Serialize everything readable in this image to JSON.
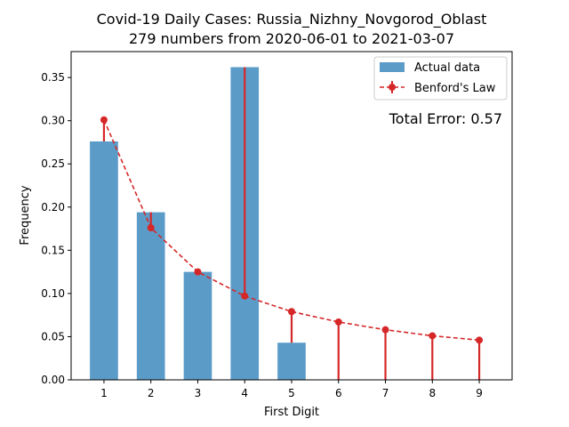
{
  "chart_data": {
    "type": "bar",
    "title": "Covid-19 Daily Cases: Russia_Nizhny_Novgorod_Oblast",
    "subtitle": "279 numbers from 2020-06-01 to 2021-03-07",
    "xlabel": "First Digit",
    "ylabel": "Frequency",
    "categories": [
      "1",
      "2",
      "3",
      "4",
      "5",
      "6",
      "7",
      "8",
      "9"
    ],
    "x": [
      1,
      2,
      3,
      4,
      5,
      6,
      7,
      8,
      9
    ],
    "ylim": [
      0,
      0.38
    ],
    "xlim": [
      0.3,
      9.7
    ],
    "yticks": [
      0.0,
      0.05,
      0.1,
      0.15,
      0.2,
      0.25,
      0.3,
      0.35
    ],
    "ytick_labels": [
      "0.00",
      "0.05",
      "0.10",
      "0.15",
      "0.20",
      "0.25",
      "0.30",
      "0.35"
    ],
    "grid": false,
    "legend_position": "top-right",
    "series": [
      {
        "name": "Actual data",
        "kind": "bar",
        "color": "#5b9bc8",
        "values": [
          0.276,
          0.194,
          0.125,
          0.362,
          0.043,
          0.0,
          0.0,
          0.0,
          0.0
        ]
      },
      {
        "name": "Benford's Law",
        "kind": "line",
        "style": "dashed",
        "color": "#d62728",
        "values": [
          0.301,
          0.176,
          0.125,
          0.097,
          0.079,
          0.067,
          0.058,
          0.051,
          0.046
        ]
      }
    ],
    "annotation": "Total Error: 0.57",
    "annotation_color": "#d62728"
  }
}
